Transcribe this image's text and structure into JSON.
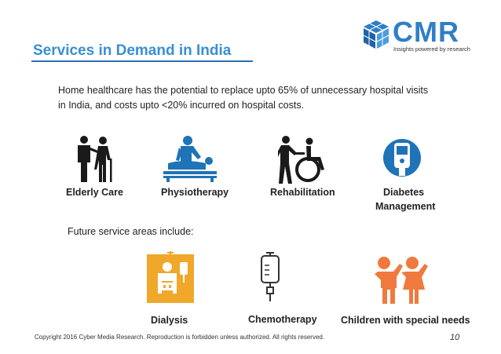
{
  "slide": {
    "title": "Services in Demand in India",
    "intro_line1": "Home healthcare has the potential to replace upto 65% of unnecessary hospital visits",
    "intro_line2": "in India, and costs upto <20% incurred on hospital costs.",
    "future_label": "Future service areas include:",
    "footer": "Copyright 2016 Cyber Media Research. Reproduction is forbidden unless authorized. All rights reserved.",
    "page_number": "10"
  },
  "logo": {
    "word": "CMR",
    "tagline": "Insights powered by research",
    "color": "#2e7fc6"
  },
  "services": [
    {
      "label": "Elderly Care",
      "icon": "elderly-care-icon"
    },
    {
      "label": "Physiotherapy",
      "icon": "physiotherapy-icon"
    },
    {
      "label": "Rehabilitation",
      "icon": "rehabilitation-icon"
    },
    {
      "label_line1": "Diabetes",
      "label_line2": "Management",
      "icon": "glucose-meter-icon"
    }
  ],
  "future_services": [
    {
      "label": "Dialysis",
      "icon": "dialysis-icon",
      "color": "#f0a82a"
    },
    {
      "label": "Chemotherapy",
      "icon": "iv-bag-icon"
    },
    {
      "label": "Children with special needs",
      "icon": "children-icon",
      "color": "#f07a3e"
    }
  ],
  "colors": {
    "title": "#3a8fd1",
    "icon_blue": "#1f73b7",
    "icon_dark": "#1a1a1a"
  }
}
